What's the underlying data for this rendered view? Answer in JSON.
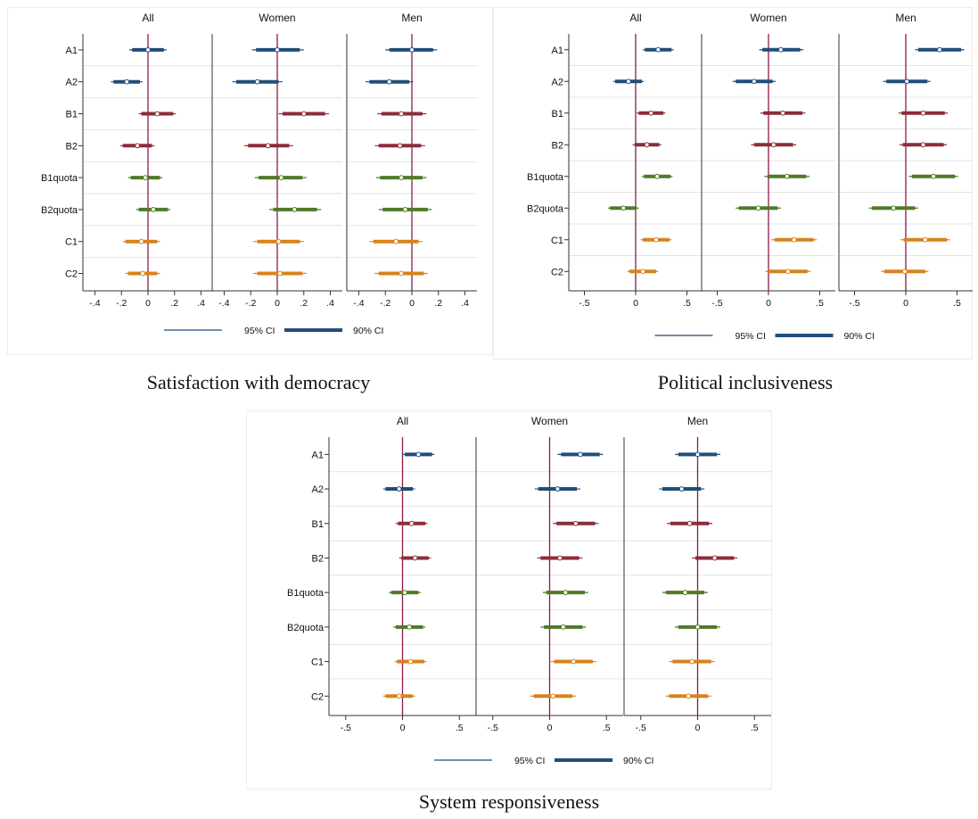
{
  "colors": {
    "zero_line": "#8b1a4a",
    "A": "#1f4e79",
    "B": "#8b2d3a",
    "Bquota": "#4f7a28",
    "C": "#d9821b"
  },
  "legend": {
    "ci95": "95% CI",
    "ci90": "90% CI"
  },
  "chart_data": [
    {
      "type": "coefficient-plot",
      "caption": "Satisfaction with democracy",
      "panel_titles": [
        "All",
        "Women",
        "Men"
      ],
      "row_labels": [
        "A1",
        "A2",
        "B1",
        "B2",
        "B1quota",
        "B2quota",
        "C1",
        "C2"
      ],
      "row_groups": [
        "A",
        "A",
        "B",
        "B",
        "Bquota",
        "Bquota",
        "C",
        "C"
      ],
      "xlim": [
        -0.45,
        0.45
      ],
      "xticks": [
        -0.4,
        -0.2,
        0,
        0.2,
        0.4
      ],
      "xtick_labels": [
        "-.4",
        "-.2",
        "0",
        ".2",
        ".4"
      ],
      "panels": [
        {
          "name": "All",
          "estimates": [
            0.0,
            -0.16,
            0.07,
            -0.08,
            -0.02,
            0.04,
            -0.05,
            -0.04
          ],
          "ci90": [
            [
              -0.12,
              0.12
            ],
            [
              -0.26,
              -0.06
            ],
            [
              -0.05,
              0.19
            ],
            [
              -0.19,
              0.03
            ],
            [
              -0.13,
              0.09
            ],
            [
              -0.07,
              0.15
            ],
            [
              -0.17,
              0.07
            ],
            [
              -0.15,
              0.07
            ]
          ],
          "ci95": [
            [
              -0.14,
              0.14
            ],
            [
              -0.28,
              -0.04
            ],
            [
              -0.07,
              0.21
            ],
            [
              -0.21,
              0.05
            ],
            [
              -0.15,
              0.11
            ],
            [
              -0.09,
              0.17
            ],
            [
              -0.19,
              0.09
            ],
            [
              -0.17,
              0.09
            ]
          ]
        },
        {
          "name": "Women",
          "estimates": [
            0.0,
            -0.15,
            0.2,
            -0.07,
            0.03,
            0.13,
            0.01,
            0.02
          ],
          "ci90": [
            [
              -0.16,
              0.17
            ],
            [
              -0.31,
              0.01
            ],
            [
              0.04,
              0.36
            ],
            [
              -0.22,
              0.09
            ],
            [
              -0.14,
              0.19
            ],
            [
              -0.03,
              0.3
            ],
            [
              -0.15,
              0.17
            ],
            [
              -0.15,
              0.19
            ]
          ],
          "ci95": [
            [
              -0.19,
              0.2
            ],
            [
              -0.34,
              0.04
            ],
            [
              0.01,
              0.39
            ],
            [
              -0.25,
              0.12
            ],
            [
              -0.17,
              0.22
            ],
            [
              -0.06,
              0.33
            ],
            [
              -0.18,
              0.2
            ],
            [
              -0.18,
              0.22
            ]
          ]
        },
        {
          "name": "Men",
          "estimates": [
            0.0,
            -0.17,
            -0.08,
            -0.09,
            -0.08,
            -0.05,
            -0.12,
            -0.08
          ],
          "ci90": [
            [
              -0.17,
              0.16
            ],
            [
              -0.32,
              -0.02
            ],
            [
              -0.23,
              0.08
            ],
            [
              -0.25,
              0.07
            ],
            [
              -0.24,
              0.08
            ],
            [
              -0.22,
              0.12
            ],
            [
              -0.29,
              0.05
            ],
            [
              -0.25,
              0.09
            ]
          ],
          "ci95": [
            [
              -0.2,
              0.19
            ],
            [
              -0.35,
              0.01
            ],
            [
              -0.26,
              0.11
            ],
            [
              -0.28,
              0.1
            ],
            [
              -0.27,
              0.11
            ],
            [
              -0.25,
              0.15
            ],
            [
              -0.32,
              0.08
            ],
            [
              -0.28,
              0.12
            ]
          ]
        }
      ]
    },
    {
      "type": "coefficient-plot",
      "caption": "Political inclusiveness",
      "panel_titles": [
        "All",
        "Women",
        "Men"
      ],
      "row_labels": [
        "A1",
        "A2",
        "B1",
        "B2",
        "B1quota",
        "B2quota",
        "C1",
        "C2"
      ],
      "row_groups": [
        "A",
        "A",
        "B",
        "B",
        "Bquota",
        "Bquota",
        "C",
        "C"
      ],
      "xlim": [
        -0.6,
        0.6
      ],
      "xticks": [
        -0.5,
        0,
        0.5
      ],
      "xtick_labels": [
        "-.5",
        "0",
        ".5"
      ],
      "panels": [
        {
          "name": "All",
          "estimates": [
            0.22,
            -0.07,
            0.15,
            0.11,
            0.21,
            -0.12,
            0.2,
            0.07
          ],
          "ci90": [
            [
              0.09,
              0.35
            ],
            [
              -0.2,
              0.06
            ],
            [
              0.03,
              0.27
            ],
            [
              -0.01,
              0.23
            ],
            [
              0.08,
              0.34
            ],
            [
              -0.25,
              0.01
            ],
            [
              0.07,
              0.33
            ],
            [
              -0.06,
              0.2
            ]
          ],
          "ci95": [
            [
              0.07,
              0.37
            ],
            [
              -0.22,
              0.08
            ],
            [
              0.01,
              0.29
            ],
            [
              -0.03,
              0.25
            ],
            [
              0.06,
              0.36
            ],
            [
              -0.27,
              0.03
            ],
            [
              0.05,
              0.35
            ],
            [
              -0.08,
              0.22
            ]
          ]
        },
        {
          "name": "Women",
          "estimates": [
            0.12,
            -0.14,
            0.14,
            0.05,
            0.18,
            -0.1,
            0.25,
            0.19
          ],
          "ci90": [
            [
              -0.06,
              0.31
            ],
            [
              -0.32,
              0.04
            ],
            [
              -0.05,
              0.33
            ],
            [
              -0.14,
              0.24
            ],
            [
              -0.01,
              0.37
            ],
            [
              -0.29,
              0.09
            ],
            [
              0.06,
              0.44
            ],
            [
              0.0,
              0.38
            ]
          ],
          "ci95": [
            [
              -0.09,
              0.34
            ],
            [
              -0.35,
              0.07
            ],
            [
              -0.08,
              0.36
            ],
            [
              -0.17,
              0.27
            ],
            [
              -0.04,
              0.4
            ],
            [
              -0.32,
              0.12
            ],
            [
              0.03,
              0.47
            ],
            [
              -0.03,
              0.41
            ]
          ]
        },
        {
          "name": "Men",
          "estimates": [
            0.33,
            0.01,
            0.17,
            0.17,
            0.27,
            -0.12,
            0.19,
            -0.01
          ],
          "ci90": [
            [
              0.12,
              0.54
            ],
            [
              -0.19,
              0.21
            ],
            [
              -0.04,
              0.38
            ],
            [
              -0.03,
              0.37
            ],
            [
              0.06,
              0.48
            ],
            [
              -0.33,
              0.09
            ],
            [
              -0.02,
              0.4
            ],
            [
              -0.21,
              0.19
            ]
          ],
          "ci95": [
            [
              0.09,
              0.57
            ],
            [
              -0.22,
              0.24
            ],
            [
              -0.07,
              0.41
            ],
            [
              -0.06,
              0.4
            ],
            [
              0.03,
              0.51
            ],
            [
              -0.36,
              0.12
            ],
            [
              -0.05,
              0.43
            ],
            [
              -0.24,
              0.22
            ]
          ]
        }
      ]
    },
    {
      "type": "coefficient-plot",
      "caption": "System responsiveness",
      "panel_titles": [
        "All",
        "Women",
        "Men"
      ],
      "row_labels": [
        "A1",
        "A2",
        "B1",
        "B2",
        "B1quota",
        "B2quota",
        "C1",
        "C2"
      ],
      "row_groups": [
        "A",
        "A",
        "B",
        "B",
        "Bquota",
        "Bquota",
        "C",
        "C"
      ],
      "xlim": [
        -0.6,
        0.6
      ],
      "xticks": [
        -0.5,
        0,
        0.5
      ],
      "xtick_labels": [
        "-.5",
        "0",
        ".5"
      ],
      "panels": [
        {
          "name": "All",
          "estimates": [
            0.14,
            -0.03,
            0.08,
            0.11,
            0.02,
            0.06,
            0.07,
            -0.03
          ],
          "ci90": [
            [
              0.02,
              0.26
            ],
            [
              -0.15,
              0.09
            ],
            [
              -0.04,
              0.2
            ],
            [
              -0.01,
              0.23
            ],
            [
              -0.1,
              0.14
            ],
            [
              -0.06,
              0.18
            ],
            [
              -0.05,
              0.19
            ],
            [
              -0.15,
              0.09
            ]
          ],
          "ci95": [
            [
              0.0,
              0.28
            ],
            [
              -0.17,
              0.11
            ],
            [
              -0.06,
              0.22
            ],
            [
              -0.03,
              0.25
            ],
            [
              -0.12,
              0.16
            ],
            [
              -0.08,
              0.2
            ],
            [
              -0.07,
              0.21
            ],
            [
              -0.17,
              0.11
            ]
          ]
        },
        {
          "name": "Women",
          "estimates": [
            0.27,
            0.07,
            0.23,
            0.09,
            0.14,
            0.12,
            0.21,
            0.03
          ],
          "ci90": [
            [
              0.1,
              0.44
            ],
            [
              -0.1,
              0.24
            ],
            [
              0.06,
              0.4
            ],
            [
              -0.08,
              0.26
            ],
            [
              -0.03,
              0.31
            ],
            [
              -0.05,
              0.29
            ],
            [
              0.04,
              0.38
            ],
            [
              -0.14,
              0.2
            ]
          ],
          "ci95": [
            [
              0.07,
              0.47
            ],
            [
              -0.13,
              0.27
            ],
            [
              0.03,
              0.43
            ],
            [
              -0.11,
              0.29
            ],
            [
              -0.06,
              0.34
            ],
            [
              -0.08,
              0.32
            ],
            [
              0.01,
              0.41
            ],
            [
              -0.17,
              0.23
            ]
          ]
        },
        {
          "name": "Men",
          "estimates": [
            0.0,
            -0.14,
            -0.07,
            0.15,
            -0.11,
            0.0,
            -0.05,
            -0.08
          ],
          "ci90": [
            [
              -0.17,
              0.17
            ],
            [
              -0.31,
              0.03
            ],
            [
              -0.24,
              0.1
            ],
            [
              -0.02,
              0.32
            ],
            [
              -0.28,
              0.06
            ],
            [
              -0.17,
              0.17
            ],
            [
              -0.22,
              0.12
            ],
            [
              -0.25,
              0.09
            ]
          ],
          "ci95": [
            [
              -0.2,
              0.2
            ],
            [
              -0.34,
              0.06
            ],
            [
              -0.27,
              0.13
            ],
            [
              -0.05,
              0.35
            ],
            [
              -0.31,
              0.09
            ],
            [
              -0.2,
              0.2
            ],
            [
              -0.25,
              0.15
            ],
            [
              -0.28,
              0.12
            ]
          ]
        }
      ]
    }
  ]
}
